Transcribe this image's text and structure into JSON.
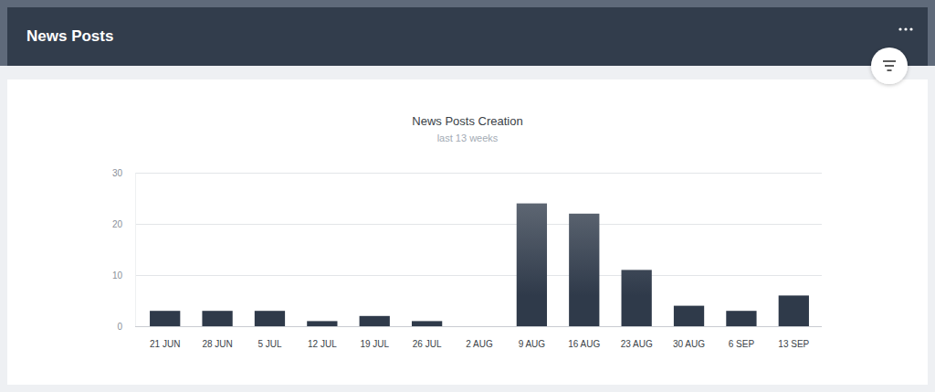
{
  "header": {
    "title": "News Posts"
  },
  "chart_data": {
    "type": "bar",
    "title": "News Posts Creation",
    "subtitle": "last 13 weeks",
    "categories": [
      "21 JUN",
      "28 JUN",
      "5 JUL",
      "12 JUL",
      "19 JUL",
      "26 JUL",
      "2 AUG",
      "9 AUG",
      "16 AUG",
      "23 AUG",
      "30 AUG",
      "6 SEP",
      "13 SEP"
    ],
    "values": [
      3,
      3,
      3,
      1,
      2,
      1,
      0,
      24,
      22,
      11,
      4,
      3,
      6
    ],
    "color": "#2f3a4a",
    "ylim": [
      0,
      30
    ],
    "yticks": [
      0,
      10,
      20,
      30
    ],
    "grid": true
  }
}
